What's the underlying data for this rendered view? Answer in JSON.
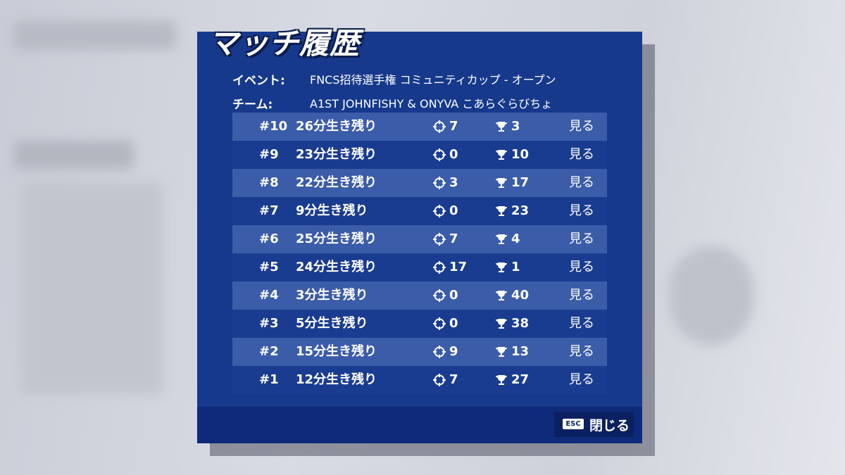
{
  "header": {
    "title": "マッチ履歴"
  },
  "info": [
    {
      "label": "イベント:",
      "value": "FNCS招待選手権 コミュニティカップ - オープン"
    },
    {
      "label": "チーム:",
      "value": "A1ST JOHNFISHY & ONYVA こあらぐらびちょ"
    }
  ],
  "table": {
    "rows": [
      [
        "#10",
        "26分生き残り",
        "7",
        "3",
        "見る"
      ],
      [
        "#9",
        "23分生き残り",
        "0",
        "10",
        "見る"
      ],
      [
        "#8",
        "22分生き残り",
        "3",
        "17",
        "見る"
      ],
      [
        "#7",
        "9分生き残り",
        "0",
        "23",
        "見る"
      ],
      [
        "#6",
        "25分生き残り",
        "7",
        "4",
        "見る"
      ],
      [
        "#5",
        "24分生き残り",
        "17",
        "1",
        "見る"
      ],
      [
        "#4",
        "3分生き残り",
        "0",
        "40",
        "見る"
      ],
      [
        "#3",
        "5分生き残り",
        "0",
        "38",
        "見る"
      ],
      [
        "#2",
        "15分生き残り",
        "9",
        "13",
        "見る"
      ],
      [
        "#1",
        "12分生き残り",
        "7",
        "27",
        "見る"
      ]
    ]
  },
  "footer": {
    "key": "ESC",
    "button": "閉じる"
  }
}
